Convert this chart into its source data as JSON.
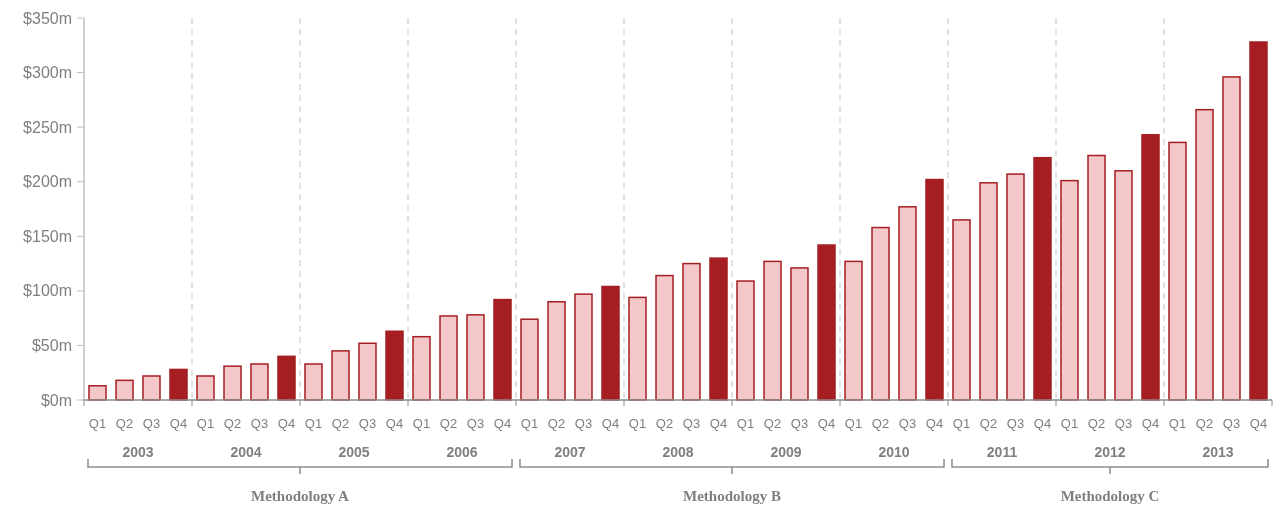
{
  "chart_data": {
    "type": "bar",
    "categories": [
      "Q1",
      "Q2",
      "Q3",
      "Q4",
      "Q1",
      "Q2",
      "Q3",
      "Q4",
      "Q1",
      "Q2",
      "Q3",
      "Q4",
      "Q1",
      "Q2",
      "Q3",
      "Q4",
      "Q1",
      "Q2",
      "Q3",
      "Q4",
      "Q1",
      "Q2",
      "Q3",
      "Q4",
      "Q1",
      "Q2",
      "Q3",
      "Q4",
      "Q1",
      "Q2",
      "Q3",
      "Q4",
      "Q1",
      "Q2",
      "Q3",
      "Q4",
      "Q1",
      "Q2",
      "Q3",
      "Q4",
      "Q1",
      "Q2",
      "Q3",
      "Q4"
    ],
    "values": [
      13,
      18,
      22,
      28,
      22,
      31,
      33,
      40,
      33,
      45,
      52,
      63,
      58,
      77,
      78,
      92,
      74,
      90,
      97,
      104,
      94,
      114,
      125,
      130,
      109,
      127,
      121,
      142,
      127,
      158,
      177,
      202,
      165,
      199,
      207,
      222,
      201,
      224,
      210,
      243,
      236,
      266,
      296,
      328
    ],
    "colors": [
      "#f4c7c9",
      "#f4c7c9",
      "#f4c7c9",
      "#a51e22",
      "#f4c7c9",
      "#f4c7c9",
      "#f4c7c9",
      "#a51e22",
      "#f4c7c9",
      "#f4c7c9",
      "#f4c7c9",
      "#a51e22",
      "#f4c7c9",
      "#f4c7c9",
      "#f4c7c9",
      "#a51e22",
      "#f4c7c9",
      "#f4c7c9",
      "#f4c7c9",
      "#a51e22",
      "#f4c7c9",
      "#f4c7c9",
      "#f4c7c9",
      "#a51e22",
      "#f4c7c9",
      "#f4c7c9",
      "#f4c7c9",
      "#a51e22",
      "#f4c7c9",
      "#f4c7c9",
      "#f4c7c9",
      "#a51e22",
      "#f4c7c9",
      "#f4c7c9",
      "#f4c7c9",
      "#a51e22",
      "#f4c7c9",
      "#f4c7c9",
      "#f4c7c9",
      "#a51e22",
      "#f4c7c9",
      "#f4c7c9",
      "#f4c7c9",
      "#a51e22"
    ],
    "ylim": [
      0,
      350
    ],
    "yticks": [
      {
        "value": 0,
        "label": "$0m"
      },
      {
        "value": 50,
        "label": "$50m"
      },
      {
        "value": 100,
        "label": "$100m"
      },
      {
        "value": 150,
        "label": "$150m"
      },
      {
        "value": 200,
        "label": "$200m"
      },
      {
        "value": 250,
        "label": "$250m"
      },
      {
        "value": 300,
        "label": "$300m"
      },
      {
        "value": 350,
        "label": "$350m"
      }
    ],
    "grid": "x",
    "annotations": [
      "2003",
      "2004",
      "2005",
      "2006",
      "2007",
      "2008",
      "2009",
      "2010",
      "2011",
      "2012",
      "2013",
      "Methodology A",
      "Methodology B",
      "Methodology C"
    ]
  }
}
